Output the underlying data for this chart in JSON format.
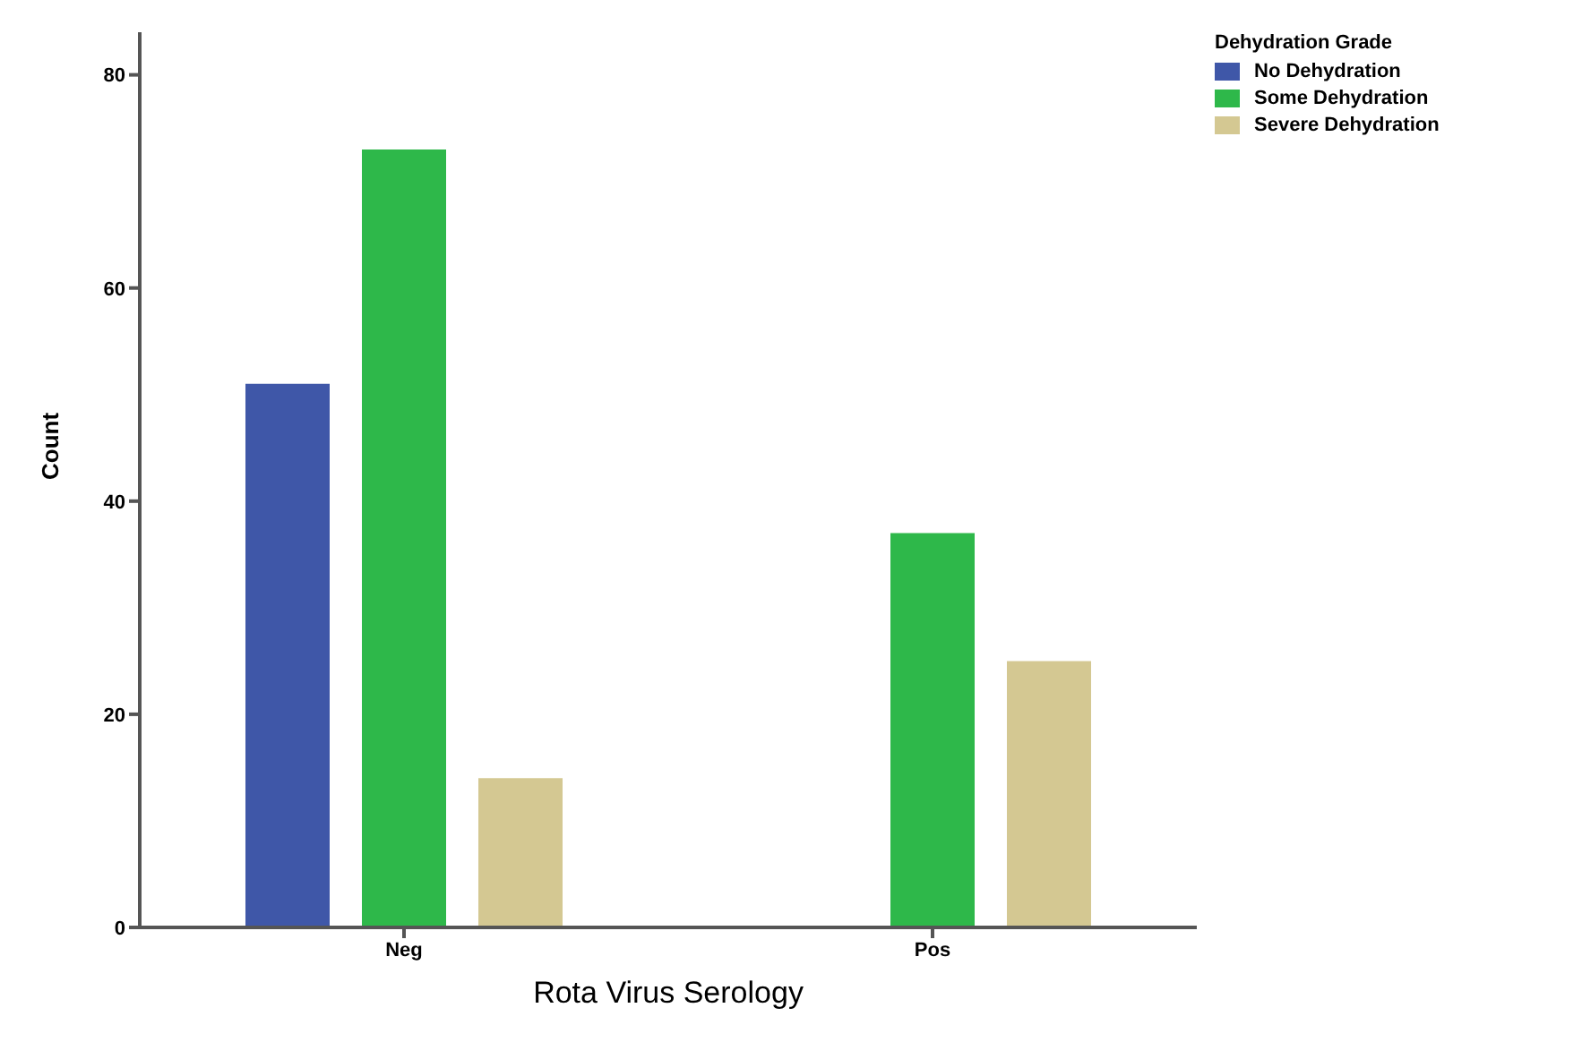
{
  "chart_data": {
    "type": "bar",
    "xlabel": "Rota Virus Serology",
    "ylabel": "Count",
    "legend_title": "Dehydration Grade",
    "categories": [
      "Neg",
      "Pos"
    ],
    "series": [
      {
        "name": "No Dehydration",
        "color": "#3f57a8",
        "values": [
          51,
          null
        ]
      },
      {
        "name": "Some Dehydration",
        "color": "#2eb84a",
        "values": [
          73,
          37
        ]
      },
      {
        "name": "Severe Dehydration",
        "color": "#d4c892",
        "values": [
          14,
          25
        ]
      }
    ],
    "ylim": [
      0,
      84
    ],
    "yticks": [
      0,
      20,
      40,
      60,
      80
    ],
    "grid": false,
    "legend": "top right"
  }
}
